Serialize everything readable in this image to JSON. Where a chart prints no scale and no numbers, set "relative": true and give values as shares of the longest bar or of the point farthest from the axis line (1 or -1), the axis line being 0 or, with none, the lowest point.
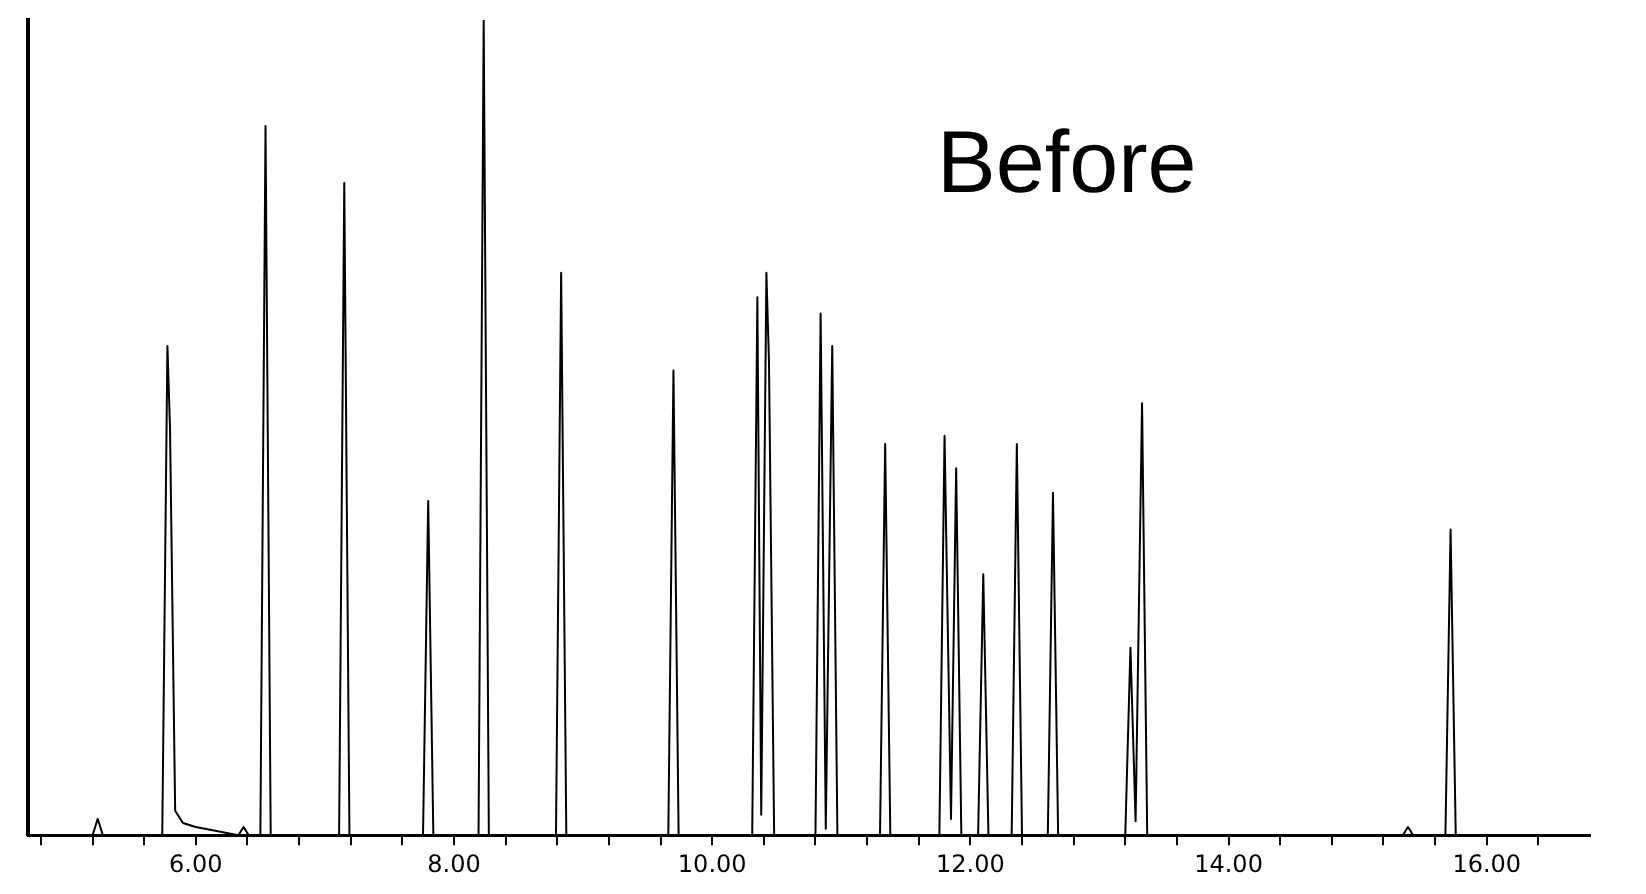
{
  "chart_data": {
    "type": "line",
    "relative": true,
    "x": [
      4.7,
      5.2,
      5.24,
      5.28,
      5.74,
      5.78,
      5.8,
      5.84,
      5.9,
      6.0,
      6.33,
      6.37,
      6.41,
      6.5,
      6.54,
      6.58,
      7.11,
      7.15,
      7.19,
      7.76,
      7.8,
      7.84,
      8.19,
      8.23,
      8.27,
      8.79,
      8.83,
      8.87,
      9.66,
      9.7,
      9.74,
      10.31,
      10.35,
      10.38,
      10.42,
      10.44,
      10.48,
      10.8,
      10.84,
      10.88,
      10.93,
      10.97,
      11.3,
      11.34,
      11.38,
      11.76,
      11.8,
      11.85,
      11.89,
      11.93,
      12.06,
      12.1,
      12.14,
      12.32,
      12.36,
      12.4,
      12.6,
      12.64,
      12.68,
      13.2,
      13.24,
      13.28,
      13.33,
      13.37,
      15.35,
      15.39,
      15.43,
      15.68,
      15.72,
      15.76,
      16.8
    ],
    "values": [
      0,
      0,
      0.02,
      0,
      0,
      0.6,
      0.5,
      0.03,
      0.015,
      0.01,
      0,
      0.01,
      0,
      0,
      0.87,
      0,
      0,
      0.8,
      0,
      0,
      0.41,
      0,
      0,
      1,
      0,
      0,
      0.69,
      0,
      0,
      0.57,
      0,
      0,
      0.66,
      0.025,
      0.69,
      0.58,
      0,
      0,
      0.64,
      0.008,
      0.6,
      0,
      0,
      0.48,
      0,
      0,
      0.49,
      0.02,
      0.45,
      0,
      0,
      0.32,
      0,
      0,
      0.48,
      0,
      0,
      0.42,
      0,
      0,
      0.23,
      0.017,
      0.53,
      0,
      0,
      0.01,
      0,
      0,
      0.375,
      0,
      0
    ],
    "color": "#000000",
    "xlim": [
      4.7,
      16.8
    ],
    "xticks": [
      {
        "value": 4.8,
        "label": null
      },
      {
        "value": 5.2,
        "label": null
      },
      {
        "value": 5.6,
        "label": null
      },
      {
        "value": 6,
        "label": "6.00"
      },
      {
        "value": 6.4,
        "label": null
      },
      {
        "value": 6.8,
        "label": null
      },
      {
        "value": 7.2,
        "label": null
      },
      {
        "value": 7.6,
        "label": null
      },
      {
        "value": 8,
        "label": "8.00"
      },
      {
        "value": 8.4,
        "label": null
      },
      {
        "value": 8.8,
        "label": null
      },
      {
        "value": 9.2,
        "label": null
      },
      {
        "value": 9.6,
        "label": null
      },
      {
        "value": 10,
        "label": "10.00"
      },
      {
        "value": 10.4,
        "label": null
      },
      {
        "value": 10.8,
        "label": null
      },
      {
        "value": 11.2,
        "label": null
      },
      {
        "value": 11.6,
        "label": null
      },
      {
        "value": 12,
        "label": "12.00"
      },
      {
        "value": 12.4,
        "label": null
      },
      {
        "value": 12.8,
        "label": null
      },
      {
        "value": 13.2,
        "label": null
      },
      {
        "value": 13.6,
        "label": null
      },
      {
        "value": 14,
        "label": "14.00"
      },
      {
        "value": 14.4,
        "label": null
      },
      {
        "value": 14.8,
        "label": null
      },
      {
        "value": 15.2,
        "label": null
      },
      {
        "value": 15.6,
        "label": null
      },
      {
        "value": 16,
        "label": "16.00"
      },
      {
        "value": 16.4,
        "label": null
      }
    ],
    "annotations": [
      "Before"
    ],
    "grid": false,
    "legend": false,
    "marker": "none",
    "line_style": "solid"
  }
}
